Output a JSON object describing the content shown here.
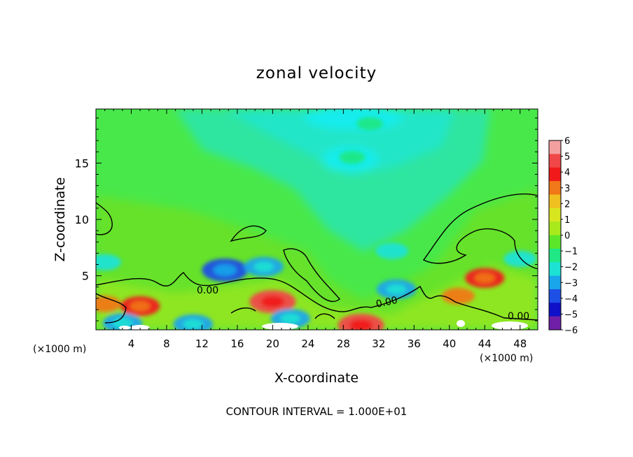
{
  "chart_data": {
    "type": "heatmap",
    "title": "zonal velocity",
    "xlabel": "X-coordinate",
    "ylabel": "Z-coordinate",
    "x_unit": "(×1000 m)",
    "footer": "CONTOUR INTERVAL = 1.000E+01",
    "xlim": [
      0,
      50
    ],
    "ylim": [
      0.2,
      19.8
    ],
    "x_ticks": [
      4,
      8,
      12,
      16,
      20,
      24,
      28,
      32,
      36,
      40,
      44,
      48
    ],
    "y_ticks": [
      5,
      10,
      15
    ],
    "colorbar": {
      "levels": [
        6,
        5,
        4,
        3,
        2,
        1,
        0,
        -1,
        -2,
        -3,
        -4,
        -5,
        -6
      ],
      "colors": [
        "#f4a0a0",
        "#f04848",
        "#f01a1a",
        "#f07818",
        "#f0c020",
        "#d8e620",
        "#a8ea1c",
        "#5ce62a",
        "#20e884",
        "#1ce2d4",
        "#1aa6ea",
        "#1e50e6",
        "#1010c8",
        "#7020a8"
      ]
    },
    "contour_labels": [
      "0.00",
      "0.00",
      "0.00"
    ],
    "features": [
      {
        "x": 14.6,
        "z": 5.5,
        "value": -5
      },
      {
        "x": 19.0,
        "z": 5.8,
        "value": -4
      },
      {
        "x": 1.0,
        "z": 6.2,
        "value": -3
      },
      {
        "x": 33.5,
        "z": 7.2,
        "value": -3
      },
      {
        "x": 34.0,
        "z": 3.8,
        "value": -4
      },
      {
        "x": 29.0,
        "z": 15.5,
        "value": -2
      },
      {
        "x": 31.0,
        "z": 18.5,
        "value": -2
      },
      {
        "x": 20.0,
        "z": 2.7,
        "value": 5
      },
      {
        "x": 5.0,
        "z": 2.3,
        "value": 4
      },
      {
        "x": 44.0,
        "z": 4.8,
        "value": 4
      },
      {
        "x": 41.0,
        "z": 3.2,
        "value": 3
      },
      {
        "x": 1.0,
        "z": 2.5,
        "value": 3
      },
      {
        "x": 30.0,
        "z": 0.6,
        "value": 5
      },
      {
        "x": 3.0,
        "z": 0.8,
        "value": -4
      },
      {
        "x": 11.0,
        "z": 0.7,
        "value": -4
      },
      {
        "x": 22.0,
        "z": 1.2,
        "value": -4
      },
      {
        "x": 48.0,
        "z": 6.5,
        "value": -3
      }
    ]
  }
}
